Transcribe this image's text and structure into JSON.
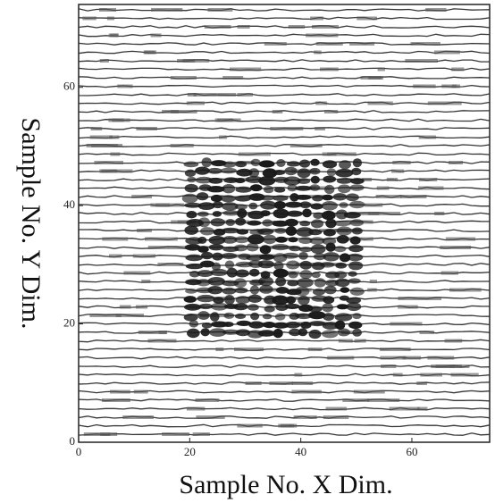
{
  "chart_data": {
    "type": "scan",
    "xlabel": "Sample No. X Dim.",
    "ylabel": "Sample No. Y Dim.",
    "xlim": [
      0,
      74
    ],
    "ylim": [
      0,
      74
    ],
    "xticks": [
      0,
      20,
      40,
      60
    ],
    "yticks": [
      0,
      20,
      40,
      60
    ],
    "color": "#333333"
  }
}
